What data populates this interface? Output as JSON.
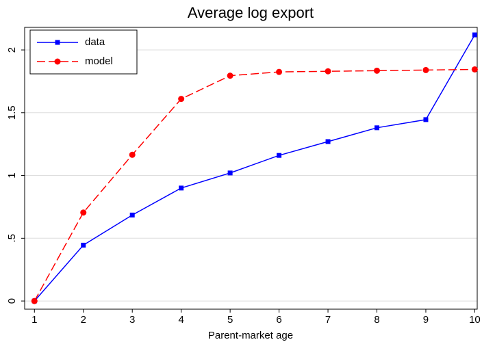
{
  "chart_data": {
    "type": "line",
    "title": "Average log export",
    "x_label": "Parent-market age",
    "x": [
      1,
      2,
      3,
      4,
      5,
      6,
      7,
      8,
      9,
      10
    ],
    "series": [
      {
        "name": "data",
        "color": "#0000ff",
        "dash": "solid",
        "marker": "square",
        "values": [
          0,
          0.445,
          0.685,
          0.9,
          1.02,
          1.16,
          1.27,
          1.38,
          1.445,
          2.12
        ]
      },
      {
        "name": "model",
        "color": "#ff0000",
        "dash": "dashed",
        "marker": "circle",
        "values": [
          0,
          0.705,
          1.165,
          1.61,
          1.795,
          1.825,
          1.83,
          1.835,
          1.84,
          1.845
        ]
      }
    ],
    "xlim": [
      0.8,
      10.05
    ],
    "ylim": [
      -0.065,
      2.18
    ],
    "xticks": [
      1,
      2,
      3,
      4,
      5,
      6,
      7,
      8,
      9,
      10
    ],
    "yticks": [
      0,
      {
        "value": 0.5,
        "label": ".5"
      },
      1,
      1.5,
      2
    ],
    "grid": true,
    "legend": "top-left"
  }
}
